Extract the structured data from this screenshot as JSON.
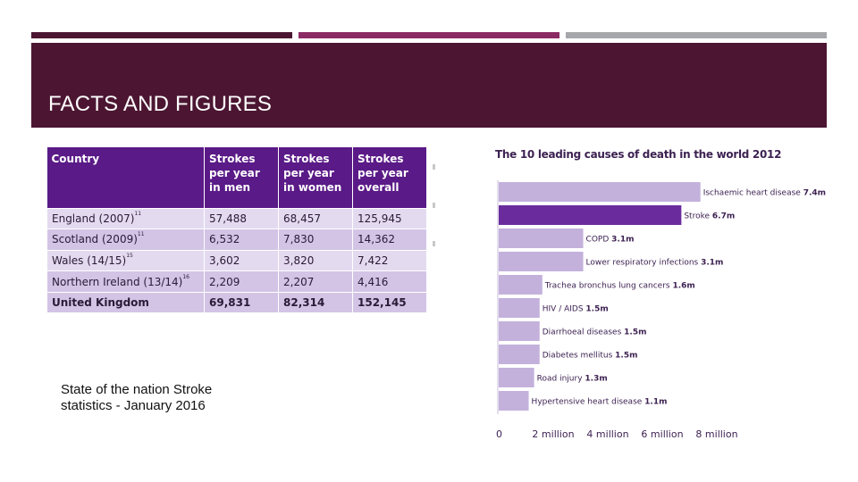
{
  "slide": {
    "title": "FACTS AND FIGURES",
    "caption": "State of the nation Stroke statistics - January 2016",
    "colors": {
      "banner": "#4c1632",
      "accent_mid": "#8a2b63",
      "accent_grey": "#a5a7aa"
    }
  },
  "table": {
    "headers": [
      "Country",
      "Strokes per year in men",
      "Strokes per year in women",
      "Strokes per year overall"
    ],
    "rows": [
      {
        "country": "England (2007)",
        "ref": "11",
        "men": "57,488",
        "women": "68,457",
        "overall": "125,945"
      },
      {
        "country": "Scotland (2009)",
        "ref": "11",
        "men": "6,532",
        "women": "7,830",
        "overall": "14,362"
      },
      {
        "country": "Wales (14/15)",
        "ref": "15",
        "men": "3,602",
        "women": "3,820",
        "overall": "7,422"
      },
      {
        "country": "Northern Ireland (13/14)",
        "ref": "16",
        "men": "2,209",
        "women": "2,207",
        "overall": "4,416"
      },
      {
        "country": "United Kingdom",
        "ref": "",
        "men": "69,831",
        "women": "82,314",
        "overall": "152,145"
      }
    ]
  },
  "chart_data": {
    "type": "bar",
    "orientation": "horizontal",
    "title": "The 10 leading causes of death in the world 2012",
    "categories": [
      "Ischaemic heart disease",
      "Stroke",
      "COPD",
      "Lower respiratory infections",
      "Trachea bronchus lung cancers",
      "HIV / AIDS",
      "Diarrhoeal diseases",
      "Diabetes mellitus",
      "Road injury",
      "Hypertensive heart disease"
    ],
    "values": [
      7.4,
      6.7,
      3.1,
      3.1,
      1.6,
      1.5,
      1.5,
      1.5,
      1.3,
      1.1
    ],
    "value_labels": [
      "7.4m",
      "6.7m",
      "3.1m",
      "3.1m",
      "1.6m",
      "1.5m",
      "1.5m",
      "1.5m",
      "1.3m",
      "1.1m"
    ],
    "highlight_index": 1,
    "xlim": [
      0,
      8
    ],
    "x_ticks": [
      0,
      2,
      4,
      6,
      8
    ],
    "x_tick_labels": [
      "0",
      "2 million",
      "4 million",
      "6 million",
      "8 million"
    ],
    "grid": false,
    "colors": {
      "bar": "#c3b1dc",
      "highlight": "#6a2c9c",
      "text": "#3d2252"
    }
  }
}
